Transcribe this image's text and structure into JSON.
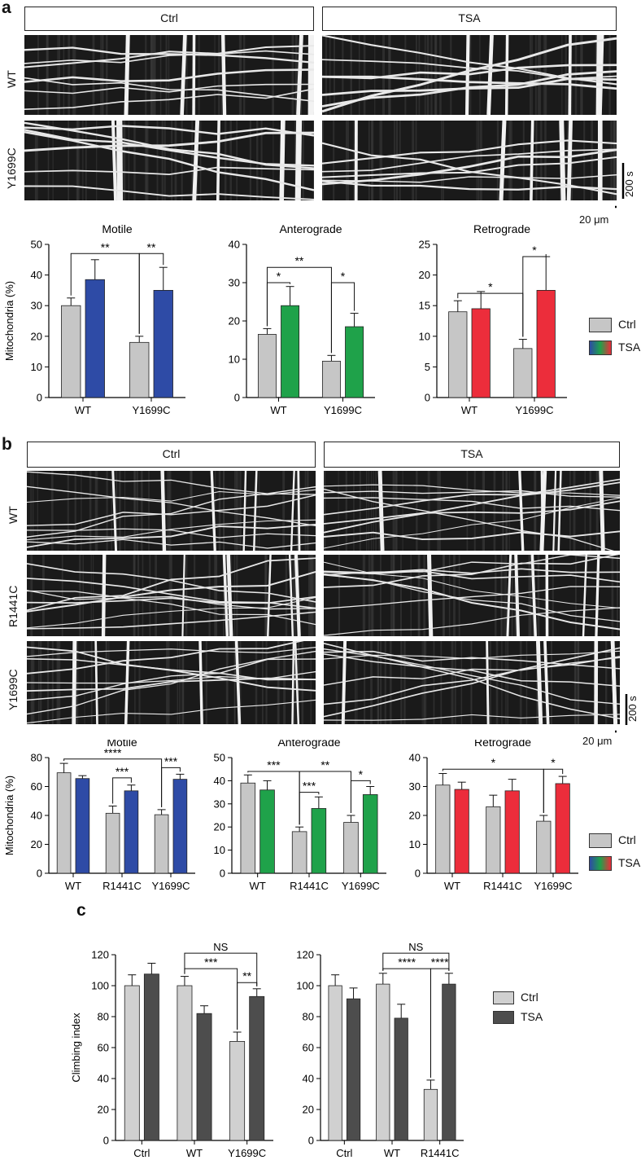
{
  "panels": {
    "a": {
      "letter": "a",
      "conditions": [
        "Ctrl",
        "TSA"
      ],
      "rows": [
        "WT",
        "Y1699C"
      ],
      "scale_time": "200 s",
      "scale_space": "20 μm"
    },
    "b": {
      "letter": "b",
      "conditions": [
        "Ctrl",
        "TSA"
      ],
      "rows": [
        "WT",
        "R1441C",
        "Y1699C"
      ],
      "scale_time": "200 s",
      "scale_space": "20 μm"
    },
    "c": {
      "letter": "c"
    }
  },
  "legend_ab": {
    "ctrl": "Ctrl",
    "tsa": "TSA"
  },
  "legend_c": {
    "ctrl": "Ctrl",
    "tsa": "TSA"
  },
  "colors": {
    "ctrl": "#c6c6c6",
    "motile": "#2e4ba6",
    "anterograde": "#1fa24a",
    "retrograde": "#ec2d3b",
    "c_ctrl": "#d0d0d0",
    "c_tsa": "#4d4d4d"
  },
  "chart_data": [
    {
      "id": "a-motile",
      "type": "bar",
      "title": "Motile",
      "ylabel": "Mitochondria (%)",
      "categories": [
        "WT",
        "Y1699C"
      ],
      "ylim": [
        0,
        50
      ],
      "yticks": [
        0,
        10,
        20,
        30,
        40,
        50
      ],
      "series": [
        {
          "name": "Ctrl",
          "values": [
            30,
            18
          ],
          "errors": [
            2.5,
            2
          ]
        },
        {
          "name": "TSA",
          "values": [
            38.5,
            35
          ],
          "errors": [
            6.5,
            7.5
          ]
        }
      ],
      "annotations": [
        {
          "type": "bracket",
          "from": [
            0,
            0
          ],
          "to": [
            1,
            0
          ],
          "label": "**",
          "y": 47
        },
        {
          "type": "bracket",
          "from": [
            1,
            0
          ],
          "to": [
            1,
            1
          ],
          "label": "**",
          "y": 47
        }
      ]
    },
    {
      "id": "a-anterograde",
      "type": "bar",
      "title": "Anterograde",
      "categories": [
        "WT",
        "Y1699C"
      ],
      "ylim": [
        0,
        40
      ],
      "yticks": [
        0,
        10,
        20,
        30,
        40
      ],
      "series": [
        {
          "name": "Ctrl",
          "values": [
            16.5,
            9.5
          ],
          "errors": [
            1.5,
            1.5
          ]
        },
        {
          "name": "TSA",
          "values": [
            24,
            18.5
          ],
          "errors": [
            5,
            3.5
          ]
        }
      ],
      "annotations": [
        {
          "type": "bracket",
          "from": [
            0,
            0
          ],
          "to": [
            0,
            1
          ],
          "label": "*",
          "y": 30
        },
        {
          "type": "bracket",
          "from": [
            0,
            0
          ],
          "to": [
            1,
            0
          ],
          "label": "**",
          "y": 34
        },
        {
          "type": "bracket",
          "from": [
            1,
            0
          ],
          "to": [
            1,
            1
          ],
          "label": "*",
          "y": 30
        }
      ]
    },
    {
      "id": "a-retrograde",
      "type": "bar",
      "title": "Retrograde",
      "categories": [
        "WT",
        "Y1699C"
      ],
      "ylim": [
        0,
        25
      ],
      "yticks": [
        0,
        5,
        10,
        15,
        20,
        25
      ],
      "series": [
        {
          "name": "Ctrl",
          "values": [
            14,
            8
          ],
          "errors": [
            1.8,
            1.5
          ]
        },
        {
          "name": "TSA",
          "values": [
            14.5,
            17.5
          ],
          "errors": [
            2.8,
            5.5
          ]
        }
      ],
      "annotations": [
        {
          "type": "bracket",
          "from": [
            0,
            0
          ],
          "to": [
            1,
            0
          ],
          "label": "*",
          "y": 17
        },
        {
          "type": "bracket",
          "from": [
            1,
            0
          ],
          "to": [
            1,
            1
          ],
          "label": "*",
          "y": 23
        }
      ]
    },
    {
      "id": "b-motile",
      "type": "bar",
      "title": "Motile",
      "ylabel": "Mitochondria (%)",
      "categories": [
        "WT",
        "R1441C",
        "Y1699C"
      ],
      "ylim": [
        0,
        80
      ],
      "yticks": [
        0,
        20,
        40,
        60,
        80
      ],
      "series": [
        {
          "name": "Ctrl",
          "values": [
            69.5,
            41.5,
            40.5
          ],
          "errors": [
            6.5,
            5,
            3.5
          ]
        },
        {
          "name": "TSA",
          "values": [
            65.5,
            57,
            65
          ],
          "errors": [
            2,
            4,
            3.5
          ]
        }
      ],
      "annotations": [
        {
          "type": "bracket",
          "from": [
            0,
            0
          ],
          "to": [
            2,
            0
          ],
          "label": "****",
          "y": 79
        },
        {
          "type": "bracket",
          "from": [
            1,
            0
          ],
          "to": [
            1,
            1
          ],
          "label": "***",
          "y": 66
        },
        {
          "type": "bracket",
          "from": [
            2,
            0
          ],
          "to": [
            2,
            1
          ],
          "label": "***",
          "y": 73
        }
      ]
    },
    {
      "id": "b-anterograde",
      "type": "bar",
      "title": "Anterograde",
      "categories": [
        "WT",
        "R1441C",
        "Y1699C"
      ],
      "ylim": [
        0,
        50
      ],
      "yticks": [
        0,
        10,
        20,
        30,
        40,
        50
      ],
      "series": [
        {
          "name": "Ctrl",
          "values": [
            39,
            18,
            22
          ],
          "errors": [
            3.5,
            2,
            3
          ]
        },
        {
          "name": "TSA",
          "values": [
            36,
            28,
            34
          ],
          "errors": [
            4,
            5,
            3.5
          ]
        }
      ],
      "annotations": [
        {
          "type": "bracket",
          "from": [
            0,
            0
          ],
          "to": [
            1,
            0
          ],
          "label": "***",
          "y": 44
        },
        {
          "type": "bracket",
          "from": [
            1,
            0
          ],
          "to": [
            2,
            0
          ],
          "label": "**",
          "y": 44
        },
        {
          "type": "bracket",
          "from": [
            1,
            0
          ],
          "to": [
            1,
            1
          ],
          "label": "***",
          "y": 35
        },
        {
          "type": "bracket",
          "from": [
            2,
            0
          ],
          "to": [
            2,
            1
          ],
          "label": "*",
          "y": 40
        }
      ]
    },
    {
      "id": "b-retrograde",
      "type": "bar",
      "title": "Retrograde",
      "categories": [
        "WT",
        "R1441C",
        "Y1699C"
      ],
      "ylim": [
        0,
        40
      ],
      "yticks": [
        0,
        10,
        20,
        30,
        40
      ],
      "series": [
        {
          "name": "Ctrl",
          "values": [
            30.5,
            23,
            18
          ],
          "errors": [
            4,
            4,
            2
          ]
        },
        {
          "name": "TSA",
          "values": [
            29,
            28.5,
            31
          ],
          "errors": [
            2.5,
            4,
            2.5
          ]
        }
      ],
      "annotations": [
        {
          "type": "bracket",
          "from": [
            0,
            0
          ],
          "to": [
            2,
            0
          ],
          "label": "*",
          "y": 36
        },
        {
          "type": "bracket",
          "from": [
            2,
            0
          ],
          "to": [
            2,
            1
          ],
          "label": "*",
          "y": 36
        }
      ]
    },
    {
      "id": "c-left",
      "type": "bar",
      "ylabel": "Climbing index",
      "categories": [
        "Ctrl",
        "WT",
        "Y1699C"
      ],
      "ylim": [
        0,
        120
      ],
      "yticks": [
        0,
        20,
        40,
        60,
        80,
        100,
        120
      ],
      "series": [
        {
          "name": "Ctrl",
          "values": [
            100,
            100,
            64
          ],
          "errors": [
            7,
            6,
            6
          ]
        },
        {
          "name": "TSA",
          "values": [
            107.5,
            82,
            93
          ],
          "errors": [
            7,
            5,
            5
          ]
        }
      ],
      "annotations": [
        {
          "type": "bracket",
          "from": [
            1,
            0
          ],
          "to": [
            2,
            1
          ],
          "label": "NS",
          "y": 121
        },
        {
          "type": "bracket",
          "from": [
            1,
            0
          ],
          "to": [
            2,
            0
          ],
          "label": "***",
          "y": 111
        },
        {
          "type": "bracket",
          "from": [
            2,
            0
          ],
          "to": [
            2,
            1
          ],
          "label": "**",
          "y": 102
        }
      ]
    },
    {
      "id": "c-right",
      "type": "bar",
      "categories": [
        "Ctrl",
        "WT",
        "R1441C"
      ],
      "ylim": [
        0,
        120
      ],
      "yticks": [
        0,
        20,
        40,
        60,
        80,
        100,
        120
      ],
      "series": [
        {
          "name": "Ctrl",
          "values": [
            100,
            101,
            33
          ],
          "errors": [
            7,
            7,
            6
          ]
        },
        {
          "name": "TSA",
          "values": [
            91.5,
            79,
            101
          ],
          "errors": [
            7,
            9,
            7
          ]
        }
      ],
      "annotations": [
        {
          "type": "bracket",
          "from": [
            1,
            0
          ],
          "to": [
            2,
            1
          ],
          "label": "NS",
          "y": 121
        },
        {
          "type": "bracket",
          "from": [
            1,
            0
          ],
          "to": [
            2,
            0
          ],
          "label": "****",
          "y": 111
        },
        {
          "type": "bracket",
          "from": [
            2,
            0
          ],
          "to": [
            2,
            1
          ],
          "label": "****",
          "y": 111
        }
      ]
    }
  ]
}
